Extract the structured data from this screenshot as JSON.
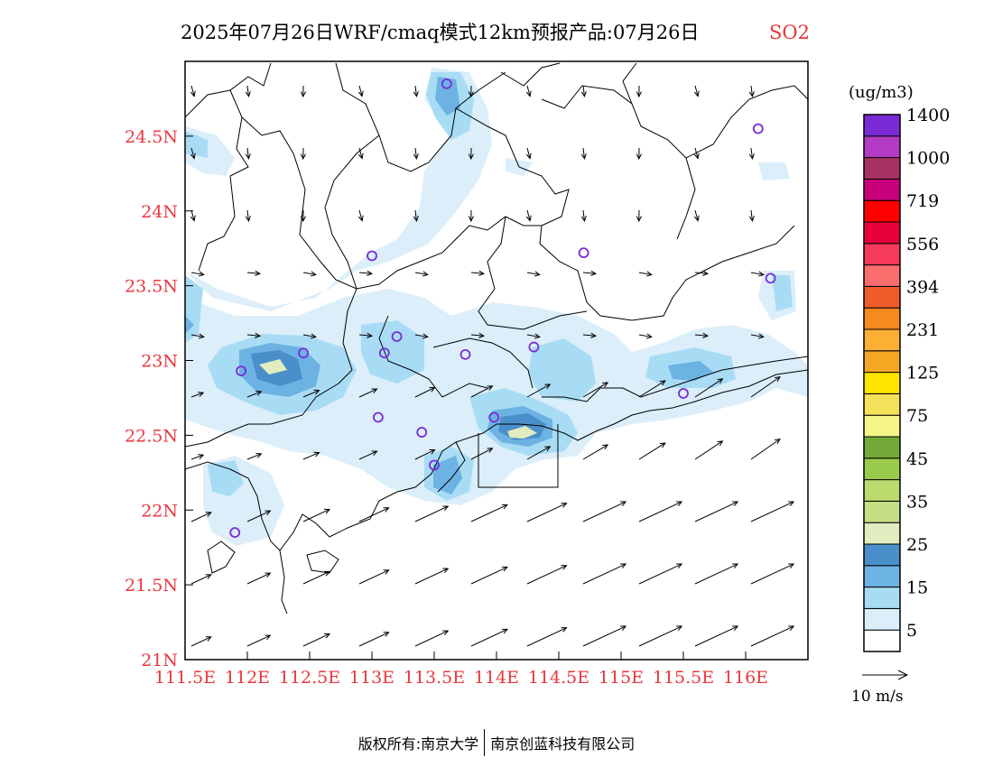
{
  "title": {
    "text": "2025年07月26日WRF/cmaq模式12km预报产品:07月26日",
    "pollutant": "SO2",
    "pollutant_color": "#e8383d"
  },
  "map": {
    "lon_ticks": [
      "111.5E",
      "112E",
      "112.5E",
      "113E",
      "113.5E",
      "114E",
      "114.5E",
      "115E",
      "115.5E",
      "116E"
    ],
    "lat_ticks": [
      "21N",
      "21.5N",
      "22N",
      "22.5N",
      "23N",
      "23.5N",
      "24N",
      "24.5N"
    ],
    "tick_color": "#e8383d",
    "lon_range": [
      111.5,
      116.5
    ],
    "lat_range": [
      21.0,
      25.0
    ]
  },
  "colorbar": {
    "unit": "(ug/m3)",
    "colors": [
      "#ffffff",
      "#dbeefa",
      "#a8dcf5",
      "#6cb2e3",
      "#4a8fc9",
      "#e1ecbf",
      "#c5df85",
      "#bcdb6e",
      "#99cc4c",
      "#73a938",
      "#f5f58a",
      "#f5e05a",
      "#ffe400",
      "#f5a623",
      "#fbb034",
      "#f78a1c",
      "#ef5b2a",
      "#fb6c6c",
      "#f53a5a",
      "#e8003c",
      "#ff0000",
      "#c8007a",
      "#a93264",
      "#b43cc4",
      "#7a2bd6"
    ],
    "labels": [
      "5",
      "15",
      "25",
      "35",
      "45",
      "75",
      "125",
      "231",
      "394",
      "556",
      "719",
      "1000",
      "1400"
    ]
  },
  "wind": {
    "ref_label": "10 m/s"
  },
  "stations": [
    [
      113.6,
      24.85
    ],
    [
      116.1,
      24.55
    ],
    [
      113.0,
      23.7
    ],
    [
      114.7,
      23.72
    ],
    [
      116.2,
      23.55
    ],
    [
      112.45,
      23.05
    ],
    [
      111.95,
      22.93
    ],
    [
      113.1,
      23.05
    ],
    [
      113.2,
      23.16
    ],
    [
      113.75,
      23.04
    ],
    [
      114.3,
      23.09
    ],
    [
      115.5,
      22.78
    ],
    [
      113.05,
      22.62
    ],
    [
      113.4,
      22.52
    ],
    [
      113.98,
      22.62
    ],
    [
      113.5,
      22.3
    ],
    [
      111.9,
      21.85
    ]
  ],
  "footer": {
    "left": "版权所有:南京大学",
    "right": "南京创蓝科技有限公司"
  }
}
